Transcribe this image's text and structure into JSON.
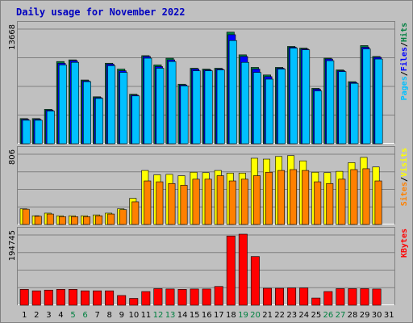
{
  "title": "Daily usage for November 2022",
  "colors": {
    "background": "#c0c0c0",
    "pages": "#00c0ff",
    "files": "#0000ff",
    "hits": "#008040",
    "visits": "#ffff00",
    "sites": "#ff8000",
    "kbytes": "#ff0000",
    "title": "#0000c0",
    "weekend_label": "#008040",
    "weekday_label": "#000000"
  },
  "chart_data": [
    {
      "type": "bar",
      "panel": "top",
      "ymax_label": "13668",
      "ymax": 13668,
      "legend": [
        "Pages",
        "/",
        "Files",
        "/",
        "Hits"
      ],
      "categories": [
        "1",
        "2",
        "3",
        "4",
        "5",
        "6",
        "7",
        "8",
        "9",
        "10",
        "11",
        "12",
        "13",
        "14",
        "15",
        "16",
        "17",
        "18",
        "19",
        "20",
        "21",
        "22",
        "23",
        "24",
        "25",
        "26",
        "27",
        "28",
        "29",
        "30",
        "31"
      ],
      "series": [
        {
          "name": "Hits",
          "values": [
            3000,
            3000,
            4100,
            9800,
            10000,
            7600,
            5600,
            9600,
            8900,
            5900,
            10500,
            9400,
            10200,
            7100,
            9000,
            8900,
            9000,
            13300,
            10600,
            9100,
            8200,
            9100,
            11600,
            11400,
            6600,
            10200,
            8800,
            7400,
            11700,
            10400,
            null
          ]
        },
        {
          "name": "Files",
          "values": [
            2900,
            2900,
            4000,
            9600,
            9900,
            7500,
            5500,
            9500,
            8700,
            5800,
            10400,
            9200,
            10000,
            7000,
            8900,
            8800,
            8900,
            13000,
            10400,
            8900,
            8000,
            9000,
            11500,
            11300,
            6500,
            10100,
            8700,
            7300,
            11500,
            10300,
            null
          ]
        },
        {
          "name": "Pages",
          "values": [
            2800,
            2800,
            3900,
            9400,
            9700,
            7400,
            5400,
            9300,
            8500,
            5700,
            10200,
            9000,
            9800,
            6900,
            8700,
            8700,
            8800,
            12300,
            9700,
            8500,
            7700,
            8900,
            11400,
            11200,
            6300,
            9900,
            8600,
            7200,
            11300,
            10100,
            null
          ]
        }
      ]
    },
    {
      "type": "bar",
      "panel": "middle",
      "ymax_label": "806",
      "ymax": 806,
      "legend": [
        "Sites",
        "/",
        "Visits"
      ],
      "categories": [
        "1",
        "2",
        "3",
        "4",
        "5",
        "6",
        "7",
        "8",
        "9",
        "10",
        "11",
        "12",
        "13",
        "14",
        "15",
        "16",
        "17",
        "18",
        "19",
        "20",
        "21",
        "22",
        "23",
        "24",
        "25",
        "26",
        "27",
        "28",
        "29",
        "30",
        "31"
      ],
      "series": [
        {
          "name": "Visits",
          "values": [
            180,
            100,
            130,
            100,
            100,
            100,
            110,
            130,
            180,
            300,
            620,
            570,
            575,
            560,
            600,
            595,
            620,
            590,
            590,
            760,
            750,
            780,
            790,
            730,
            600,
            595,
            610,
            710,
            770,
            660,
            null
          ]
        },
        {
          "name": "Sites",
          "values": [
            175,
            95,
            120,
            90,
            90,
            90,
            100,
            120,
            170,
            260,
            500,
            490,
            470,
            450,
            520,
            520,
            560,
            500,
            520,
            560,
            600,
            620,
            630,
            620,
            490,
            470,
            520,
            630,
            640,
            500,
            null
          ]
        }
      ]
    },
    {
      "type": "bar",
      "panel": "bottom",
      "ymax_label": "194745",
      "ymax": 194745,
      "legend": [
        "KBytes"
      ],
      "categories": [
        "1",
        "2",
        "3",
        "4",
        "5",
        "6",
        "7",
        "8",
        "9",
        "10",
        "11",
        "12",
        "13",
        "14",
        "15",
        "16",
        "17",
        "18",
        "19",
        "20",
        "21",
        "22",
        "23",
        "24",
        "25",
        "26",
        "27",
        "28",
        "29",
        "30",
        "31"
      ],
      "series": [
        {
          "name": "KBytes",
          "values": [
            44000,
            40000,
            42000,
            44000,
            44000,
            40000,
            40000,
            40000,
            27000,
            19000,
            38000,
            46000,
            45000,
            44000,
            45000,
            45000,
            52000,
            192000,
            197000,
            135000,
            47000,
            47000,
            48000,
            48000,
            20000,
            38000,
            46000,
            46000,
            46000,
            45000,
            null
          ]
        }
      ]
    }
  ]
}
